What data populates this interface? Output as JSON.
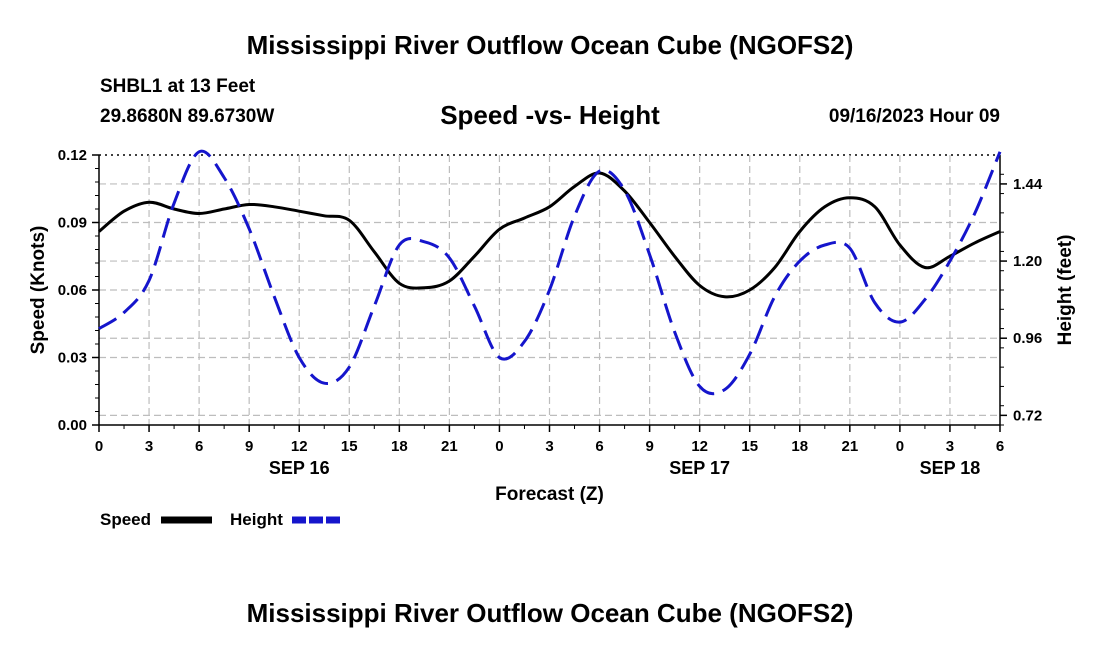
{
  "chart_data": {
    "type": "line",
    "title": "Mississippi River Outflow Ocean Cube (NGOFS2)",
    "station": "SHBL1 at 13 Feet",
    "location": "29.8680N  89.6730W",
    "subtitle": "Speed -vs- Height",
    "datetime": "09/16/2023 Hour 09",
    "xlabel": "Forecast (Z)",
    "ylabel_left": "Speed (Knots)",
    "ylabel_right": "Height (feet)",
    "x_range_hours": [
      0,
      54
    ],
    "x_tick_step_hours": 3,
    "x_tick_labels": [
      "0",
      "3",
      "6",
      "9",
      "12",
      "15",
      "18",
      "21",
      "0",
      "3",
      "6",
      "9",
      "12",
      "15",
      "18",
      "21",
      "0",
      "3",
      "6"
    ],
    "date_labels": [
      {
        "hour": 12,
        "label": "SEP 16"
      },
      {
        "hour": 36,
        "label": "SEP 17"
      },
      {
        "hour": 51,
        "label": "SEP 18"
      }
    ],
    "ylim_left": [
      0,
      0.12
    ],
    "yticks_left": [
      "0.00",
      "0.03",
      "0.06",
      "0.09",
      "0.12"
    ],
    "ylim_right": [
      0.69,
      1.53
    ],
    "yticks_right": [
      0.72,
      0.96,
      1.2,
      1.44
    ],
    "yticks_right_labels": [
      "0.72",
      "0.96",
      "1.20",
      "1.44"
    ],
    "series": [
      {
        "name": "Speed",
        "axis": "left",
        "color": "#000000",
        "style": "solid",
        "x": [
          0,
          1.5,
          3,
          4.5,
          6,
          7.5,
          9,
          10.5,
          12,
          13.5,
          15,
          16.5,
          18,
          19.5,
          21,
          22.5,
          24,
          25.5,
          27,
          28.5,
          30,
          31.5,
          33,
          34.5,
          36,
          37.5,
          39,
          40.5,
          42,
          43.5,
          45,
          46.5,
          48,
          49.5,
          51,
          52.5,
          54
        ],
        "values": [
          0.086,
          0.095,
          0.099,
          0.096,
          0.094,
          0.096,
          0.098,
          0.097,
          0.095,
          0.093,
          0.091,
          0.077,
          0.063,
          0.061,
          0.064,
          0.075,
          0.087,
          0.092,
          0.097,
          0.106,
          0.112,
          0.104,
          0.09,
          0.075,
          0.062,
          0.057,
          0.06,
          0.07,
          0.086,
          0.097,
          0.101,
          0.097,
          0.08,
          0.07,
          0.075,
          0.081,
          0.086
        ]
      },
      {
        "name": "Height",
        "axis": "right",
        "color": "#1515cc",
        "style": "dashed",
        "x": [
          0,
          1.5,
          3,
          4.5,
          6,
          7.5,
          9,
          10.5,
          12,
          13.5,
          15,
          16.5,
          18,
          19.5,
          21,
          22.5,
          24,
          25.5,
          27,
          28.5,
          30,
          31.5,
          33,
          34.5,
          36,
          37.5,
          39,
          40.5,
          42,
          43.5,
          45,
          46.5,
          48,
          49.5,
          51,
          52.5,
          54
        ],
        "values": [
          0.99,
          1.04,
          1.14,
          1.38,
          1.54,
          1.46,
          1.3,
          1.09,
          0.9,
          0.82,
          0.87,
          1.06,
          1.25,
          1.26,
          1.21,
          1.06,
          0.9,
          0.95,
          1.11,
          1.34,
          1.48,
          1.42,
          1.22,
          0.98,
          0.81,
          0.8,
          0.91,
          1.09,
          1.2,
          1.25,
          1.24,
          1.07,
          1.01,
          1.08,
          1.2,
          1.35,
          1.54
        ]
      }
    ],
    "legend": [
      {
        "label": "Speed",
        "color": "#000000",
        "style": "solid"
      },
      {
        "label": "Height",
        "color": "#1515cc",
        "style": "dashed"
      }
    ],
    "legend_position": "bottom-left",
    "grid": true
  }
}
